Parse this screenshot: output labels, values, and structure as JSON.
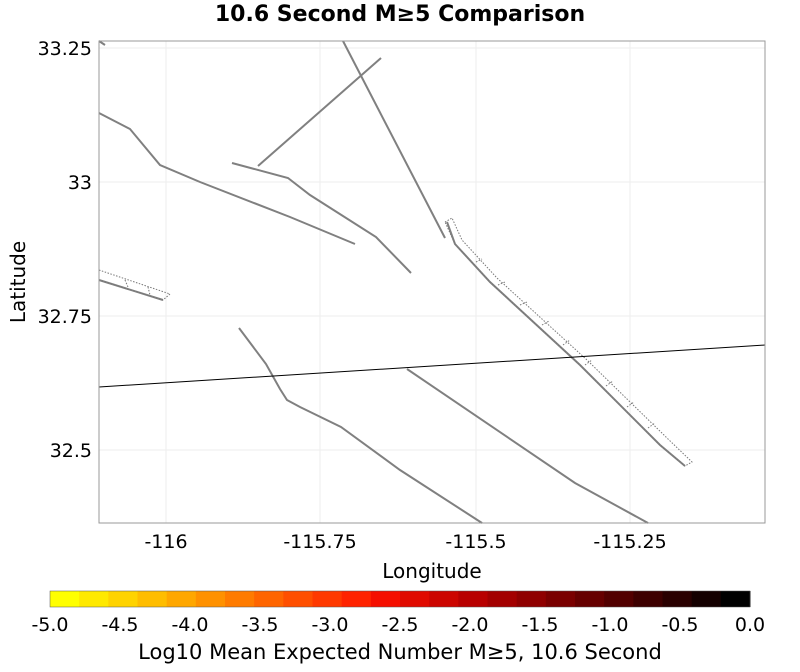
{
  "title": "10.6 Second M≥5 Comparison",
  "map": {
    "xlabel": "Longitude",
    "ylabel": "Latitude",
    "x_ticks": [
      "-116",
      "-115.75",
      "-115.5",
      "-115.25"
    ],
    "y_ticks": [
      "33.25",
      "33",
      "32.75",
      "32.5"
    ],
    "lon_range": [
      -116.1,
      -115.05
    ],
    "lat_range": [
      32.4,
      33.26
    ],
    "fault_color": "#808080",
    "boundary_color": "#000000"
  },
  "colorbar": {
    "title": "Log10 Mean Expected Number M≥5, 10.6 Second",
    "tick_labels": [
      "-5.0",
      "-4.5",
      "-4.0",
      "-3.5",
      "-3.0",
      "-2.5",
      "-2.0",
      "-1.5",
      "-1.0",
      "-0.5",
      "0.0"
    ],
    "range": [
      -5.0,
      0.0
    ],
    "colors": [
      "#ffff00",
      "#ffe900",
      "#ffd300",
      "#ffbd00",
      "#ffa700",
      "#ff9100",
      "#ff7b00",
      "#ff6500",
      "#ff4f00",
      "#ff3900",
      "#ff2300",
      "#f50f00",
      "#e00a00",
      "#cc0500",
      "#b80000",
      "#a30000",
      "#8f0000",
      "#7a0000",
      "#660000",
      "#520000",
      "#3d0000",
      "#290000",
      "#140000",
      "#000000"
    ]
  }
}
